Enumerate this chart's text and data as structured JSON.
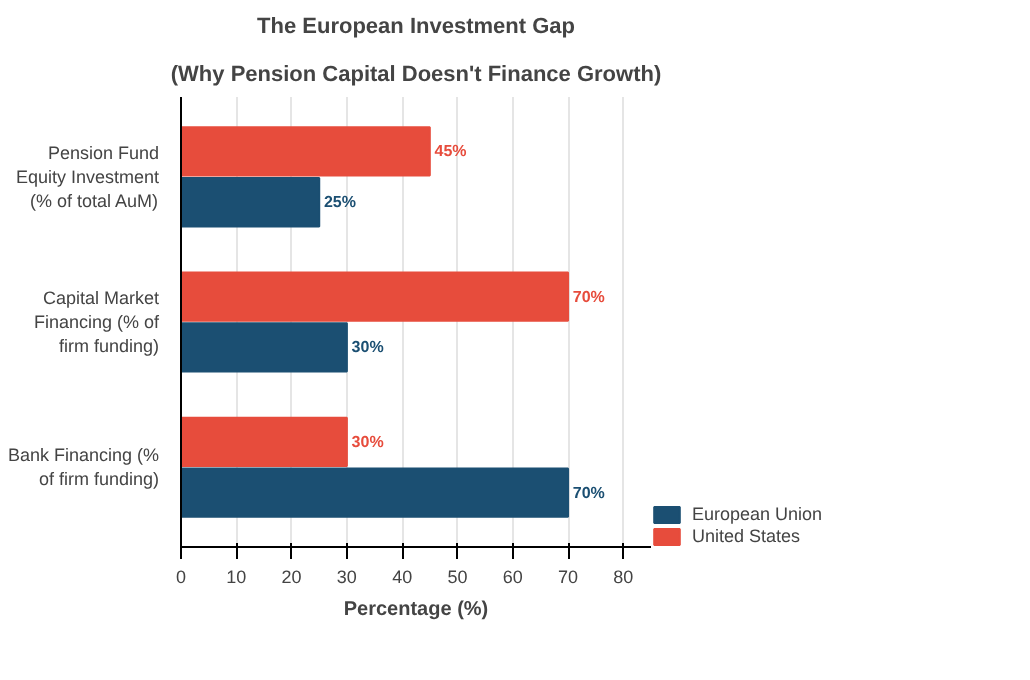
{
  "chart_data": {
    "type": "bar",
    "orientation": "horizontal",
    "title": "The European Investment Gap",
    "subtitle": "(Why Pension Capital Doesn't Finance Growth)",
    "xlabel": "Percentage (%)",
    "categories": [
      "Pension Fund Equity Investment (% of total AuM)",
      "Capital Market Financing (% of firm funding)",
      "Bank Financing (% of firm funding)"
    ],
    "series": [
      {
        "name": "European Union",
        "color": "#1b4f72",
        "values": [
          25,
          30,
          70
        ],
        "value_labels": [
          "25%",
          "30%",
          "70%"
        ]
      },
      {
        "name": "United States",
        "color": "#e74c3c",
        "values": [
          45,
          70,
          30
        ],
        "value_labels": [
          "45%",
          "70%",
          "30%"
        ]
      }
    ],
    "xlim": [
      0,
      85
    ],
    "xticks": [
      0,
      10,
      20,
      30,
      40,
      50,
      60,
      70,
      80
    ],
    "grid": "x",
    "legend": "bottom right"
  }
}
